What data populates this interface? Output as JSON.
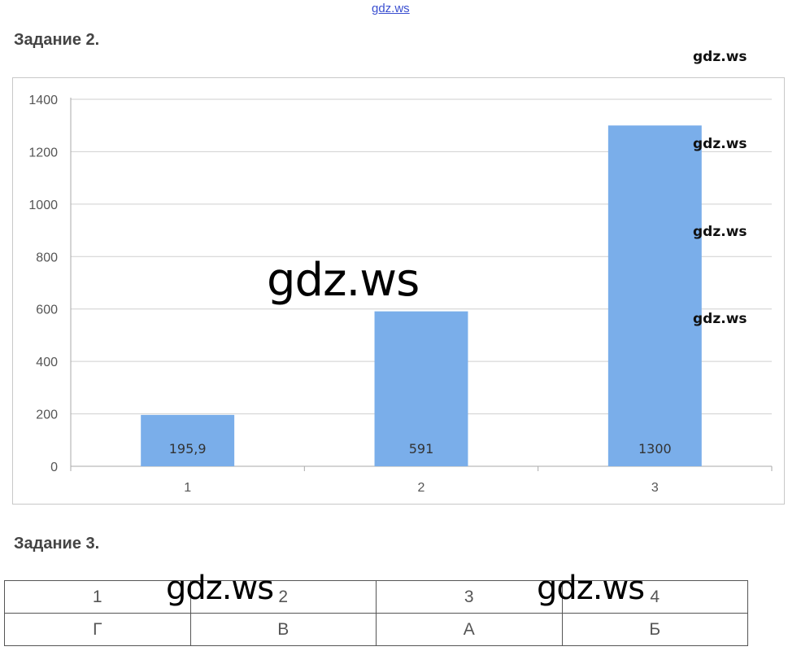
{
  "watermark_link": "gdz.ws",
  "task2": {
    "heading": "Задание 2."
  },
  "task3": {
    "heading": "Задание 3."
  },
  "watermarks": {
    "right_1": "gdz.ws",
    "right_2": "gdz.ws",
    "right_3": "gdz.ws",
    "right_4": "gdz.ws",
    "center_big": "gdz.ws",
    "table_left": "gdz.ws",
    "table_right": "gdz.ws"
  },
  "chart_data": {
    "type": "bar",
    "categories": [
      "1",
      "2",
      "3"
    ],
    "values": [
      195.9,
      591,
      1300
    ],
    "data_labels": [
      "195,9",
      "591",
      "1300"
    ],
    "yticks": [
      "0",
      "200",
      "400",
      "600",
      "800",
      "1000",
      "1200",
      "1400"
    ],
    "ylim": [
      0,
      1400
    ],
    "title": "",
    "xlabel": "",
    "ylabel": "",
    "grid": true,
    "bar_color": "#7aaeea"
  },
  "answer_table": {
    "rows": [
      [
        "1",
        "2",
        "3",
        "4"
      ],
      [
        "Г",
        "В",
        "А",
        "Б"
      ]
    ]
  }
}
